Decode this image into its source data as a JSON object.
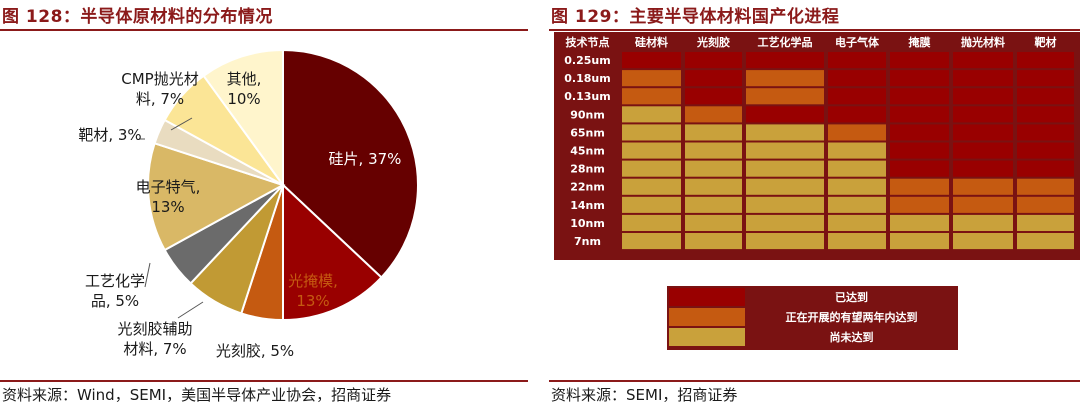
{
  "colors": {
    "brand": "#8b1a1a",
    "reached": "#990000",
    "in_progress": "#c55a11",
    "not_reached": "#c9a13b",
    "header_bg": "#7a1212"
  },
  "left": {
    "title": "图 128：半导体原材料的分布情况",
    "source": "资料来源：Wind，SEMI，美国半导体产业协会，招商证券"
  },
  "right": {
    "title": "图 129：主要半导体材料国产化进程",
    "source": "资料来源：SEMI，招商证券"
  },
  "chart_data": [
    {
      "type": "pie",
      "title": "半导体原材料的分布情况",
      "slices": [
        {
          "label": "硅片",
          "pct_label": "37%",
          "value": 37,
          "color": "#660000"
        },
        {
          "label": "光掩模",
          "pct_label": "13%",
          "value": 13,
          "color": "#990000"
        },
        {
          "label": "光刻胶",
          "pct_label": "5%",
          "value": 5,
          "color": "#c55a11"
        },
        {
          "label": "光刻胶辅助材料",
          "pct_label": "7%",
          "value": 7,
          "color": "#c19a34"
        },
        {
          "label": "工艺化学品",
          "pct_label": "5%",
          "value": 5,
          "color": "#6b6b6b"
        },
        {
          "label": "电子特气",
          "pct_label": "13%",
          "value": 13,
          "color": "#d9b866"
        },
        {
          "label": "靶材",
          "pct_label": "3%",
          "value": 3,
          "color": "#e9dcc0"
        },
        {
          "label": "CMP抛光材料",
          "pct_label": "7%",
          "value": 7,
          "color": "#fbe596"
        },
        {
          "label": "其他",
          "pct_label": "10%",
          "value": 10,
          "color": "#fff5cc"
        }
      ],
      "label_lines": {
        "硅片": [
          "硅片, 37%"
        ],
        "光掩模": [
          "光掩模,",
          "13%"
        ],
        "光刻胶": [
          "光刻胶, 5%"
        ],
        "光刻胶辅助材料": [
          "光刻胶辅助",
          "材料, 7%"
        ],
        "工艺化学品": [
          "工艺化学",
          "品, 5%"
        ],
        "电子特气": [
          "电子特气,",
          "13%"
        ],
        "靶材": [
          "靶材, 3%"
        ],
        "CMP抛光材料": [
          "CMP抛光材",
          "料, 7%"
        ],
        "其他": [
          "其他,",
          "10%"
        ]
      }
    },
    {
      "type": "table",
      "title": "主要半导体材料国产化进程",
      "columns": [
        "技术节点",
        "硅材料",
        "光刻胶",
        "工艺化学品",
        "电子气体",
        "掩膜",
        "抛光材料",
        "靶材"
      ],
      "rows": [
        "0.25um",
        "0.18um",
        "0.13um",
        "90nm",
        "65nm",
        "45nm",
        "28nm",
        "22nm",
        "14nm",
        "10nm",
        "7nm"
      ],
      "status_key": {
        "R": "已达到",
        "P": "正在开展的有望两年内达到",
        "N": "尚未达到"
      },
      "status": [
        [
          "R",
          "R",
          "R",
          "R",
          "R",
          "R",
          "R"
        ],
        [
          "P",
          "R",
          "P",
          "R",
          "R",
          "R",
          "R"
        ],
        [
          "P",
          "R",
          "P",
          "R",
          "R",
          "R",
          "R"
        ],
        [
          "N",
          "P",
          "R",
          "R",
          "R",
          "R",
          "R"
        ],
        [
          "N",
          "N",
          "N",
          "P",
          "R",
          "R",
          "R"
        ],
        [
          "N",
          "N",
          "N",
          "N",
          "R",
          "R",
          "R"
        ],
        [
          "N",
          "N",
          "N",
          "N",
          "R",
          "R",
          "R"
        ],
        [
          "N",
          "N",
          "N",
          "N",
          "P",
          "P",
          "P"
        ],
        [
          "N",
          "N",
          "N",
          "N",
          "P",
          "P",
          "P"
        ],
        [
          "N",
          "N",
          "N",
          "N",
          "N",
          "N",
          "N"
        ],
        [
          "N",
          "N",
          "N",
          "N",
          "N",
          "N",
          "N"
        ]
      ],
      "legend": [
        {
          "key": "R",
          "label": "已达到"
        },
        {
          "key": "P",
          "label": "正在开展的有望两年内达到"
        },
        {
          "key": "N",
          "label": "尚未达到"
        }
      ]
    }
  ]
}
